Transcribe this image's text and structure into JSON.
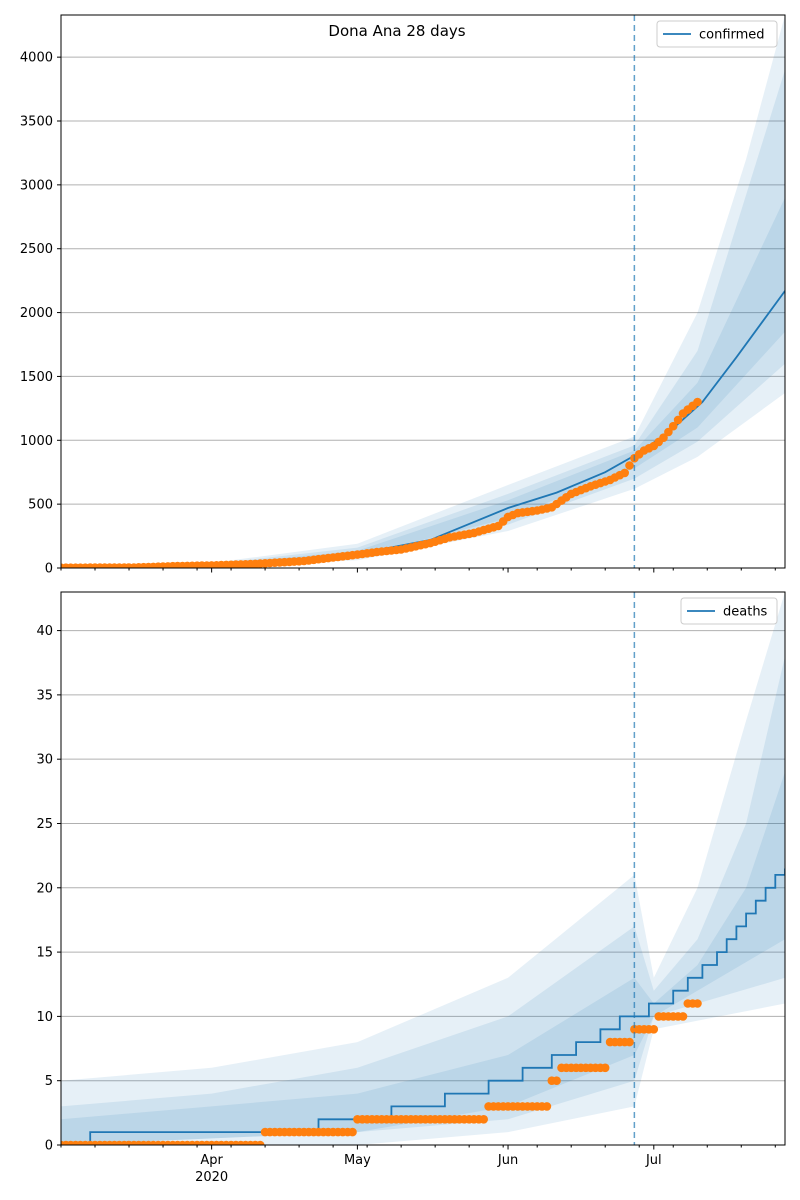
{
  "figure": {
    "title": "Dona Ana 28 days"
  },
  "chart_data": [
    {
      "type": "line",
      "title": "Dona Ana 28 days",
      "x_axis": {
        "type": "date",
        "start": "2020-03-01",
        "end": "2020-07-28",
        "tick_labels": [
          "Apr",
          "May",
          "Jun",
          "Jul"
        ],
        "tick_dates": [
          "2020-04-01",
          "2020-05-01",
          "2020-06-01",
          "2020-07-01"
        ],
        "year_label": "2020",
        "minor_ticks": "weekly"
      },
      "y_axis": {
        "ylim": [
          0,
          4330
        ],
        "ticks": [
          0,
          500,
          1000,
          1500,
          2000,
          2500,
          3000,
          3500,
          4000
        ]
      },
      "grid": "horizontal",
      "legend": {
        "position": "top-right",
        "entries": [
          "confirmed"
        ]
      },
      "forecast_start": "2020-06-27",
      "series": [
        {
          "name": "confirmed",
          "kind": "model-line",
          "color": "#1f77b4",
          "points": [
            [
              "2020-03-01",
              2
            ],
            [
              "2020-03-16",
              5
            ],
            [
              "2020-04-01",
              20
            ],
            [
              "2020-04-16",
              50
            ],
            [
              "2020-05-01",
              110
            ],
            [
              "2020-05-16",
              220
            ],
            [
              "2020-06-01",
              470
            ],
            [
              "2020-06-11",
              590
            ],
            [
              "2020-06-21",
              750
            ],
            [
              "2020-06-27",
              880
            ],
            [
              "2020-07-04",
              1060
            ],
            [
              "2020-07-11",
              1300
            ],
            [
              "2020-07-18",
              1650
            ],
            [
              "2020-07-28",
              2170
            ]
          ]
        },
        {
          "kind": "observed-points",
          "color": "#ff7f0e",
          "points": [
            [
              "2020-03-01",
              2
            ],
            [
              "2020-03-16",
              4
            ],
            [
              "2020-03-25",
              15
            ],
            [
              "2020-04-01",
              20
            ],
            [
              "2020-04-10",
              32
            ],
            [
              "2020-04-20",
              55
            ],
            [
              "2020-05-01",
              105
            ],
            [
              "2020-05-05",
              125
            ],
            [
              "2020-05-10",
              145
            ],
            [
              "2020-05-16",
              195
            ],
            [
              "2020-05-20",
              240
            ],
            [
              "2020-05-25",
              275
            ],
            [
              "2020-05-30",
              330
            ],
            [
              "2020-06-01",
              400
            ],
            [
              "2020-06-03",
              430
            ],
            [
              "2020-06-07",
              450
            ],
            [
              "2020-06-10",
              475
            ],
            [
              "2020-06-14",
              580
            ],
            [
              "2020-06-18",
              640
            ],
            [
              "2020-06-22",
              690
            ],
            [
              "2020-06-25",
              745
            ],
            [
              "2020-06-27",
              860
            ],
            [
              "2020-06-29",
              920
            ],
            [
              "2020-07-01",
              955
            ],
            [
              "2020-07-03",
              1020
            ],
            [
              "2020-07-05",
              1110
            ],
            [
              "2020-07-07",
              1210
            ],
            [
              "2020-07-09",
              1270
            ],
            [
              "2020-07-10",
              1300
            ]
          ]
        }
      ],
      "bands": [
        {
          "level": "outer",
          "lower": [
            [
              "2020-03-01",
              0
            ],
            [
              "2020-04-01",
              10
            ],
            [
              "2020-05-01",
              60
            ],
            [
              "2020-06-01",
              290
            ],
            [
              "2020-06-27",
              620
            ],
            [
              "2020-07-10",
              870
            ],
            [
              "2020-07-28",
              1370
            ]
          ],
          "upper": [
            [
              "2020-03-01",
              8
            ],
            [
              "2020-04-01",
              40
            ],
            [
              "2020-05-01",
              190
            ],
            [
              "2020-06-01",
              650
            ],
            [
              "2020-06-27",
              1030
            ],
            [
              "2020-07-10",
              2000
            ],
            [
              "2020-07-20",
              3200
            ],
            [
              "2020-07-28",
              4330
            ]
          ]
        },
        {
          "level": "middle",
          "lower": [
            [
              "2020-03-01",
              0
            ],
            [
              "2020-04-01",
              13
            ],
            [
              "2020-05-01",
              75
            ],
            [
              "2020-06-01",
              340
            ],
            [
              "2020-06-27",
              700
            ],
            [
              "2020-07-10",
              990
            ],
            [
              "2020-07-28",
              1600
            ]
          ],
          "upper": [
            [
              "2020-03-01",
              6
            ],
            [
              "2020-04-01",
              32
            ],
            [
              "2020-05-01",
              160
            ],
            [
              "2020-06-01",
              580
            ],
            [
              "2020-06-27",
              960
            ],
            [
              "2020-07-10",
              1700
            ],
            [
              "2020-07-28",
              3900
            ]
          ]
        },
        {
          "level": "inner",
          "lower": [
            [
              "2020-03-01",
              1
            ],
            [
              "2020-04-01",
              16
            ],
            [
              "2020-05-01",
              90
            ],
            [
              "2020-06-01",
              390
            ],
            [
              "2020-06-27",
              780
            ],
            [
              "2020-07-10",
              1100
            ],
            [
              "2020-07-28",
              1850
            ]
          ],
          "upper": [
            [
              "2020-03-01",
              4
            ],
            [
              "2020-04-01",
              26
            ],
            [
              "2020-05-01",
              135
            ],
            [
              "2020-06-01",
              530
            ],
            [
              "2020-06-27",
              920
            ],
            [
              "2020-07-10",
              1450
            ],
            [
              "2020-07-28",
              2900
            ]
          ]
        }
      ]
    },
    {
      "type": "line",
      "x_axis": {
        "type": "date",
        "start": "2020-03-01",
        "end": "2020-07-28",
        "tick_labels": [
          "Apr",
          "May",
          "Jun",
          "Jul"
        ],
        "tick_dates": [
          "2020-04-01",
          "2020-05-01",
          "2020-06-01",
          "2020-07-01"
        ],
        "year_label": "2020",
        "minor_ticks": "weekly"
      },
      "y_axis": {
        "ylim": [
          0,
          43
        ],
        "ticks": [
          0,
          5,
          10,
          15,
          20,
          25,
          30,
          35,
          40
        ]
      },
      "grid": "horizontal",
      "legend": {
        "position": "top-right",
        "entries": [
          "deaths"
        ]
      },
      "forecast_start": "2020-06-27",
      "series": [
        {
          "name": "deaths",
          "kind": "model-step",
          "color": "#1f77b4",
          "points": [
            [
              "2020-03-01",
              0
            ],
            [
              "2020-03-07",
              1
            ],
            [
              "2020-04-23",
              2
            ],
            [
              "2020-05-08",
              3
            ],
            [
              "2020-05-19",
              4
            ],
            [
              "2020-05-28",
              5
            ],
            [
              "2020-06-04",
              6
            ],
            [
              "2020-06-10",
              7
            ],
            [
              "2020-06-15",
              8
            ],
            [
              "2020-06-20",
              9
            ],
            [
              "2020-06-24",
              10
            ],
            [
              "2020-06-30",
              11
            ],
            [
              "2020-07-05",
              12
            ],
            [
              "2020-07-08",
              13
            ],
            [
              "2020-07-11",
              14
            ],
            [
              "2020-07-14",
              15
            ],
            [
              "2020-07-16",
              16
            ],
            [
              "2020-07-18",
              17
            ],
            [
              "2020-07-20",
              18
            ],
            [
              "2020-07-22",
              19
            ],
            [
              "2020-07-24",
              20
            ],
            [
              "2020-07-26",
              21
            ],
            [
              "2020-07-28",
              21.5
            ]
          ]
        },
        {
          "kind": "observed-points",
          "color": "#ff7f0e",
          "points": [
            [
              "2020-03-01",
              0
            ],
            [
              "2020-04-11",
              0
            ],
            [
              "2020-04-12",
              1
            ],
            [
              "2020-04-30",
              1
            ],
            [
              "2020-05-01",
              2
            ],
            [
              "2020-05-27",
              2
            ],
            [
              "2020-05-28",
              3
            ],
            [
              "2020-06-09",
              3
            ],
            [
              "2020-06-10",
              5
            ],
            [
              "2020-06-11",
              5
            ],
            [
              "2020-06-12",
              6
            ],
            [
              "2020-06-21",
              6
            ],
            [
              "2020-06-22",
              8
            ],
            [
              "2020-06-26",
              8
            ],
            [
              "2020-06-27",
              9
            ],
            [
              "2020-07-01",
              9
            ],
            [
              "2020-07-02",
              10
            ],
            [
              "2020-07-07",
              10
            ],
            [
              "2020-07-08",
              11
            ],
            [
              "2020-07-10",
              11
            ]
          ]
        }
      ],
      "bands": [
        {
          "level": "outer",
          "lower": [
            [
              "2020-03-01",
              0
            ],
            [
              "2020-05-01",
              0
            ],
            [
              "2020-06-01",
              1
            ],
            [
              "2020-06-27",
              3
            ],
            [
              "2020-07-01",
              9
            ],
            [
              "2020-07-28",
              11
            ]
          ],
          "upper": [
            [
              "2020-03-01",
              5
            ],
            [
              "2020-04-01",
              6
            ],
            [
              "2020-05-01",
              8
            ],
            [
              "2020-06-01",
              13
            ],
            [
              "2020-06-27",
              21
            ],
            [
              "2020-07-01",
              13
            ],
            [
              "2020-07-10",
              20
            ],
            [
              "2020-07-20",
              33
            ],
            [
              "2020-07-28",
              43
            ]
          ]
        },
        {
          "level": "middle",
          "lower": [
            [
              "2020-03-01",
              0
            ],
            [
              "2020-05-01",
              1
            ],
            [
              "2020-06-01",
              2
            ],
            [
              "2020-06-27",
              5
            ],
            [
              "2020-07-01",
              10
            ],
            [
              "2020-07-28",
              13
            ]
          ],
          "upper": [
            [
              "2020-03-01",
              3
            ],
            [
              "2020-04-01",
              4
            ],
            [
              "2020-05-01",
              6
            ],
            [
              "2020-06-01",
              10
            ],
            [
              "2020-06-27",
              17
            ],
            [
              "2020-07-01",
              12
            ],
            [
              "2020-07-10",
              16
            ],
            [
              "2020-07-20",
              25
            ],
            [
              "2020-07-28",
              38
            ]
          ]
        },
        {
          "level": "inner",
          "lower": [
            [
              "2020-03-01",
              0
            ],
            [
              "2020-05-01",
              1
            ],
            [
              "2020-06-01",
              3
            ],
            [
              "2020-06-27",
              7
            ],
            [
              "2020-07-01",
              10
            ],
            [
              "2020-07-28",
              16
            ]
          ],
          "upper": [
            [
              "2020-03-01",
              2
            ],
            [
              "2020-04-01",
              3
            ],
            [
              "2020-05-01",
              4
            ],
            [
              "2020-06-01",
              7
            ],
            [
              "2020-06-27",
              13
            ],
            [
              "2020-07-01",
              11
            ],
            [
              "2020-07-10",
              14
            ],
            [
              "2020-07-20",
              20
            ],
            [
              "2020-07-28",
              29
            ]
          ]
        }
      ]
    }
  ],
  "colors": {
    "model": "#1f77b4",
    "observed": "#ff7f0e",
    "band": "#1f77b4",
    "grid": "#b0b0b0"
  }
}
